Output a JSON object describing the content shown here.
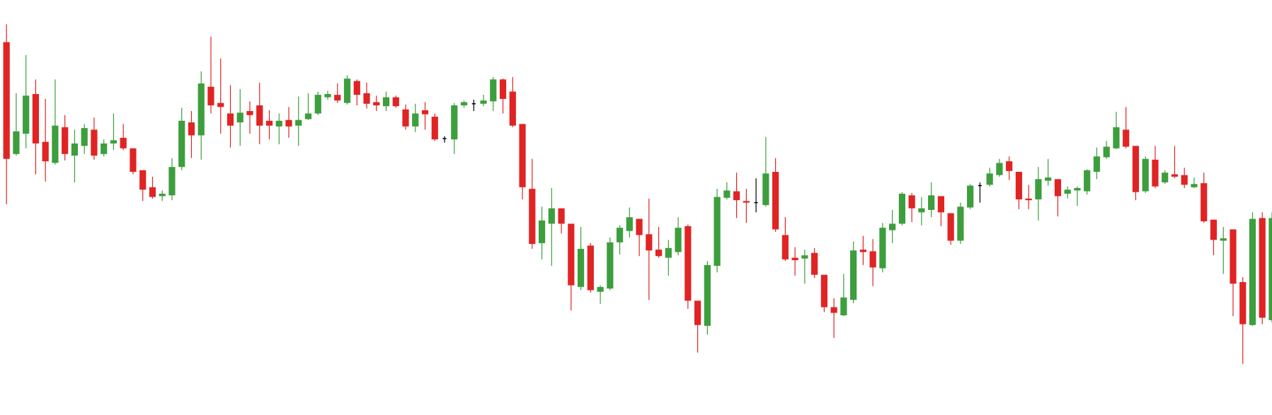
{
  "chart_data": {
    "type": "candlestick",
    "ylim": [
      -12,
      500
    ],
    "colors": {
      "up": "#3d9e3d",
      "down": "#e02424",
      "unchanged": "#000000"
    },
    "open": [
      448,
      310,
      335,
      384,
      325,
      299,
      343,
      308,
      320,
      340,
      310,
      323,
      330,
      317,
      290,
      269,
      258,
      259,
      294,
      349,
      333,
      393,
      373,
      360,
      349,
      363,
      370,
      351,
      344,
      352,
      345,
      353,
      360,
      380,
      383,
      373,
      400,
      385,
      374,
      369,
      380,
      365,
      344,
      364,
      356,
      329,
      328,
      370,
      372,
      372,
      375,
      402,
      387,
      347,
      267,
      200,
      224,
      243,
      224,
      146,
      197,
      140,
      144,
      201,
      215,
      230,
      211,
      192,
      182,
      189,
      221,
      129,
      98,
      172,
      256,
      264,
      252,
      250,
      247,
      288,
      210,
      182,
      181,
      188,
      161,
      121,
      111,
      130,
      192,
      190,
      169,
      216,
      224,
      259,
      238,
      241,
      258,
      237,
      203,
      244,
      271,
      272,
      284,
      301,
      288,
      255,
      254,
      277,
      279,
      261,
      265,
      264,
      288,
      306,
      317,
      340,
      320,
      264,
      303,
      275,
      285,
      284,
      269,
      274,
      229,
      203,
      217,
      152,
      99,
      231,
      105
    ],
    "high": [
      470,
      385,
      432,
      402,
      378,
      402,
      358,
      340,
      347,
      355,
      328,
      360,
      347,
      317,
      290,
      282,
      265,
      305,
      367,
      363,
      412,
      455,
      428,
      395,
      390,
      375,
      398,
      364,
      360,
      368,
      381,
      385,
      387,
      388,
      397,
      407,
      402,
      398,
      382,
      387,
      382,
      371,
      372,
      374,
      360,
      332,
      373,
      376,
      377,
      383,
      405,
      403,
      405,
      347,
      304,
      245,
      268,
      243,
      224,
      220,
      200,
      148,
      207,
      222,
      244,
      230,
      255,
      220,
      204,
      232,
      223,
      129,
      178,
      267,
      275,
      287,
      267,
      280,
      331,
      305,
      232,
      195,
      192,
      194,
      161,
      132,
      162,
      202,
      209,
      205,
      225,
      241,
      263,
      262,
      257,
      275,
      258,
      237,
      250,
      273,
      275,
      293,
      304,
      307,
      288,
      272,
      294,
      304,
      279,
      270,
      270,
      291,
      318,
      326,
      362,
      368,
      320,
      307,
      320,
      290,
      320,
      293,
      281,
      287,
      229,
      220,
      217,
      158,
      238,
      238,
      238
    ],
    "low": [
      248,
      308,
      317,
      285,
      276,
      297,
      302,
      275,
      310,
      303,
      307,
      315,
      315,
      285,
      252,
      255,
      252,
      253,
      290,
      305,
      303,
      360,
      335,
      318,
      320,
      335,
      322,
      328,
      322,
      330,
      320,
      352,
      358,
      377,
      373,
      371,
      370,
      366,
      363,
      363,
      367,
      340,
      337,
      340,
      326,
      324,
      310,
      367,
      363,
      369,
      363,
      360,
      343,
      254,
      193,
      180,
      172,
      212,
      117,
      142,
      139,
      125,
      142,
      186,
      207,
      184,
      130,
      182,
      160,
      185,
      119,
      65,
      87,
      164,
      254,
      231,
      225,
      238,
      245,
      214,
      178,
      160,
      150,
      157,
      115,
      83,
      110,
      126,
      173,
      147,
      164,
      200,
      222,
      226,
      222,
      232,
      221,
      198,
      199,
      242,
      250,
      270,
      282,
      278,
      242,
      242,
      228,
      271,
      233,
      255,
      246,
      260,
      279,
      304,
      316,
      317,
      253,
      262,
      268,
      273,
      280,
      268,
      268,
      225,
      185,
      162,
      110,
      51,
      98,
      100,
      102
    ],
    "close": [
      304,
      338,
      382,
      323,
      301,
      345,
      310,
      323,
      342,
      308,
      323,
      327,
      317,
      288,
      266,
      257,
      261,
      294,
      351,
      333,
      397,
      370,
      368,
      345,
      361,
      358,
      345,
      345,
      351,
      344,
      352,
      360,
      383,
      384,
      376,
      403,
      383,
      372,
      370,
      380,
      369,
      344,
      360,
      359,
      328,
      329,
      370,
      374,
      372,
      376,
      402,
      378,
      345,
      269,
      199,
      228,
      243,
      224,
      148,
      193,
      142,
      146,
      201,
      219,
      232,
      210,
      191,
      184,
      194,
      219,
      129,
      99,
      173,
      257,
      265,
      253,
      250,
      250,
      286,
      217,
      180,
      179,
      185,
      161,
      121,
      114,
      133,
      191,
      189,
      170,
      219,
      224,
      261,
      243,
      243,
      259,
      238,
      203,
      245,
      271,
      271,
      286,
      299,
      289,
      254,
      253,
      279,
      281,
      258,
      266,
      268,
      290,
      307,
      319,
      343,
      319,
      263,
      304,
      270,
      287,
      282,
      272,
      273,
      227,
      204,
      206,
      150,
      100,
      230,
      108,
      231
    ]
  }
}
